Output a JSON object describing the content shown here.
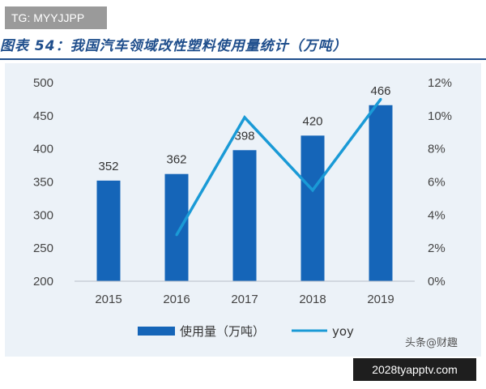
{
  "overlay": {
    "top_tag": "TG: MYYJJPP",
    "bottom_badge": "2028tyapptv.com",
    "source_mark": "头条@财趣"
  },
  "title": "图表 54：我国汽车领域改性塑料使用量统计（万吨）",
  "chart_data": {
    "type": "bar",
    "categories": [
      "2015",
      "2016",
      "2017",
      "2018",
      "2019"
    ],
    "series": [
      {
        "name": "使用量（万吨）",
        "type": "bar",
        "axis": "left",
        "values": [
          352,
          362,
          398,
          420,
          466
        ],
        "color": "#1565b8"
      },
      {
        "name": "yoy",
        "type": "line",
        "axis": "right",
        "values": [
          null,
          2.8,
          9.9,
          5.5,
          11.0
        ],
        "color": "#1a9ad6"
      }
    ],
    "y_left": {
      "min": 200,
      "max": 500,
      "ticks": [
        "200",
        "250",
        "300",
        "350",
        "400",
        "450",
        "500"
      ]
    },
    "y_right": {
      "min": 0,
      "max": 12,
      "unit": "%",
      "ticks": [
        "0%",
        "2%",
        "4%",
        "6%",
        "8%",
        "10%",
        "12%"
      ]
    },
    "data_labels": [
      "352",
      "362",
      "398",
      "420",
      "466"
    ],
    "legend": {
      "position": "bottom",
      "items": [
        "使用量（万吨）",
        "yoy"
      ]
    },
    "grid": false
  }
}
